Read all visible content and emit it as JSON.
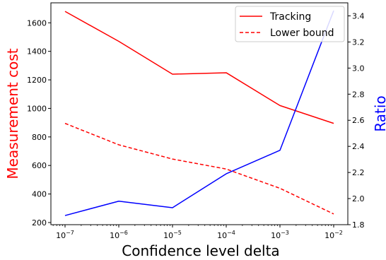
{
  "chart_data": {
    "type": "line",
    "xscale": "log",
    "x": [
      1e-07,
      1e-06,
      1e-05,
      0.0001,
      0.001,
      0.01
    ],
    "xtick_labels": [
      {
        "base": "10",
        "exp": "−7"
      },
      {
        "base": "10",
        "exp": "−6"
      },
      {
        "base": "10",
        "exp": "−5"
      },
      {
        "base": "10",
        "exp": "−4"
      },
      {
        "base": "10",
        "exp": "−3"
      },
      {
        "base": "10",
        "exp": "−2"
      }
    ],
    "xlabel": "Confidence level delta",
    "ylabel_left": "Measurement cost",
    "ylabel_right": "Ratio",
    "ylim_left": [
      185,
      1740
    ],
    "ylim_right": [
      1.8,
      3.5
    ],
    "yticks_left": [
      "200",
      "400",
      "600",
      "800",
      "1000",
      "1200",
      "1400",
      "1600"
    ],
    "yticks_right": [
      "1.8",
      "2.0",
      "2.2",
      "2.4",
      "2.6",
      "2.8",
      "3.0",
      "3.2",
      "3.4"
    ],
    "grid": false,
    "legend_position": "top-right",
    "series": [
      {
        "name": "Tracking",
        "axis": "left",
        "color": "#ff0000",
        "style": "solid",
        "values": [
          1680,
          1470,
          1240,
          1250,
          1020,
          895
        ]
      },
      {
        "name": "Lower bound",
        "axis": "left",
        "color": "#ff0000",
        "style": "dashed",
        "values": [
          895,
          745,
          645,
          575,
          440,
          260
        ]
      },
      {
        "axis": "right",
        "color": "#0000ff",
        "style": "solid",
        "values": [
          1.87,
          1.98,
          1.93,
          2.19,
          2.37,
          3.44
        ]
      }
    ]
  }
}
